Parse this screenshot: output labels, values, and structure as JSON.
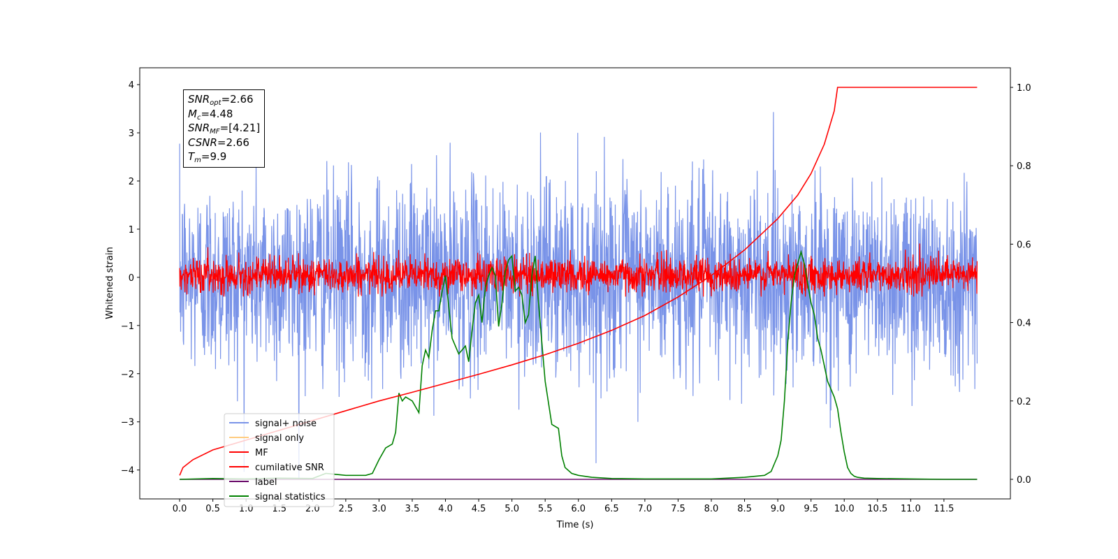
{
  "chart_data": {
    "type": "line",
    "xlabel": "Time (s)",
    "ylabel": "Whitened strain",
    "xlim": [
      -0.6,
      12.5
    ],
    "ylim": [
      -4.6,
      4.35
    ],
    "y2lim": [
      -0.05,
      1.05
    ],
    "x_ticks": [
      "0.0",
      "0.5",
      "1.0",
      "1.5",
      "2.0",
      "2.5",
      "3.0",
      "3.5",
      "4.0",
      "4.5",
      "5.0",
      "5.5",
      "6.0",
      "6.5",
      "7.0",
      "7.5",
      "8.0",
      "8.5",
      "9.0",
      "9.5",
      "10.0",
      "10.5",
      "11.0",
      "11.5"
    ],
    "y_ticks": [
      "4",
      "3",
      "2",
      "1",
      "0",
      "−1",
      "−2",
      "−3",
      "−4"
    ],
    "y2_ticks": [
      "1.0",
      "0.8",
      "0.6",
      "0.4",
      "0.2",
      "0.0"
    ],
    "legend_position": "lower-left",
    "series": [
      {
        "name": "signal+ noise",
        "color": "#7993e8",
        "axis": "left",
        "approx_range": [
          -4.2,
          4.0
        ],
        "typical_std": 1.0
      },
      {
        "name": "signal only",
        "color": "#ffcc80",
        "axis": "left",
        "values": "not visible (hidden behind other series)"
      },
      {
        "name": "MF",
        "color": "#ff0000",
        "axis": "left",
        "approx_range": [
          -0.4,
          1.0
        ],
        "typical_std": 0.18
      },
      {
        "name": "cumilative SNR",
        "color": "#ff0000",
        "axis": "right",
        "x": [
          0.0,
          0.05,
          0.2,
          0.5,
          1.0,
          1.5,
          2.0,
          2.5,
          3.0,
          3.5,
          4.0,
          4.5,
          5.0,
          5.5,
          6.0,
          6.5,
          7.0,
          7.5,
          8.0,
          8.5,
          9.0,
          9.3,
          9.5,
          9.7,
          9.85,
          9.9,
          10.0,
          10.5,
          11.0,
          11.5,
          12.0
        ],
        "values": [
          0.01,
          0.03,
          0.05,
          0.075,
          0.1,
          0.125,
          0.15,
          0.175,
          0.2,
          0.222,
          0.245,
          0.268,
          0.292,
          0.318,
          0.347,
          0.38,
          0.418,
          0.465,
          0.52,
          0.585,
          0.665,
          0.725,
          0.78,
          0.855,
          0.94,
          1.0,
          1.0,
          1.0,
          1.0,
          1.0,
          1.0
        ]
      },
      {
        "name": "label",
        "color": "#6a0a6a",
        "axis": "right",
        "x": [
          0.0,
          12.0
        ],
        "values": [
          0.0,
          0.0
        ]
      },
      {
        "name": "signal statistics",
        "color": "#008000",
        "axis": "right",
        "x": [
          0.0,
          0.5,
          1.0,
          1.5,
          2.0,
          2.2,
          2.5,
          2.8,
          2.9,
          3.0,
          3.1,
          3.2,
          3.25,
          3.3,
          3.35,
          3.4,
          3.5,
          3.6,
          3.65,
          3.7,
          3.75,
          3.8,
          3.85,
          3.9,
          3.95,
          4.0,
          4.05,
          4.1,
          4.2,
          4.3,
          4.35,
          4.4,
          4.45,
          4.5,
          4.55,
          4.6,
          4.65,
          4.7,
          4.75,
          4.8,
          4.85,
          4.9,
          4.95,
          5.0,
          5.05,
          5.1,
          5.15,
          5.2,
          5.25,
          5.3,
          5.35,
          5.4,
          5.45,
          5.5,
          5.6,
          5.7,
          5.75,
          5.8,
          5.9,
          6.0,
          6.2,
          6.5,
          7.0,
          7.5,
          8.0,
          8.5,
          8.8,
          8.9,
          8.95,
          9.0,
          9.05,
          9.1,
          9.15,
          9.2,
          9.25,
          9.3,
          9.35,
          9.4,
          9.45,
          9.5,
          9.55,
          9.6,
          9.65,
          9.7,
          9.75,
          9.8,
          9.85,
          9.9,
          9.95,
          10.0,
          10.05,
          10.1,
          10.15,
          10.2,
          10.3,
          10.5,
          11.0,
          11.5,
          12.0
        ],
        "values": [
          0.0,
          0.002,
          0.001,
          0.003,
          0.002,
          0.015,
          0.01,
          0.01,
          0.015,
          0.05,
          0.08,
          0.09,
          0.12,
          0.22,
          0.2,
          0.21,
          0.2,
          0.17,
          0.29,
          0.33,
          0.31,
          0.38,
          0.43,
          0.43,
          0.48,
          0.52,
          0.44,
          0.36,
          0.32,
          0.34,
          0.3,
          0.38,
          0.45,
          0.47,
          0.4,
          0.49,
          0.52,
          0.54,
          0.52,
          0.39,
          0.45,
          0.53,
          0.56,
          0.57,
          0.48,
          0.49,
          0.47,
          0.4,
          0.42,
          0.52,
          0.57,
          0.45,
          0.35,
          0.25,
          0.14,
          0.13,
          0.06,
          0.03,
          0.015,
          0.01,
          0.005,
          0.002,
          0.001,
          0.001,
          0.001,
          0.005,
          0.01,
          0.02,
          0.04,
          0.06,
          0.1,
          0.2,
          0.35,
          0.45,
          0.52,
          0.55,
          0.58,
          0.55,
          0.5,
          0.45,
          0.42,
          0.36,
          0.33,
          0.29,
          0.25,
          0.23,
          0.21,
          0.18,
          0.12,
          0.07,
          0.03,
          0.015,
          0.008,
          0.005,
          0.003,
          0.002,
          0.001,
          0.0,
          0.0
        ]
      }
    ]
  },
  "info_box": {
    "lines": [
      {
        "sym": "SNR",
        "sub": "opt",
        "rest": "=2.66"
      },
      {
        "sym": "M",
        "sub": "c",
        "rest": "=4.48"
      },
      {
        "sym": "SNR",
        "sub": "MF",
        "rest": "=[4.21]"
      },
      {
        "sym": "CSNR",
        "sub": "",
        "rest": "=2.66"
      },
      {
        "sym": "T",
        "sub": "m",
        "rest": "=9.9"
      }
    ]
  }
}
